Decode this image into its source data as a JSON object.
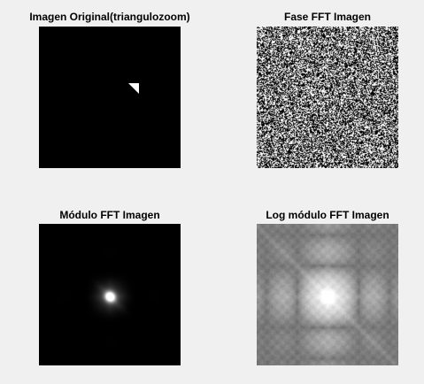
{
  "figure": {
    "background": "#f0f0f0",
    "panels": [
      {
        "id": "original",
        "title": "Imagen Original(triangulozoom)"
      },
      {
        "id": "phase",
        "title": "Fase FFT Imagen"
      },
      {
        "id": "magnitude",
        "title": "Módulo FFT Imagen"
      },
      {
        "id": "log_magnitude",
        "title": "Log módulo FFT Imagen"
      }
    ]
  }
}
